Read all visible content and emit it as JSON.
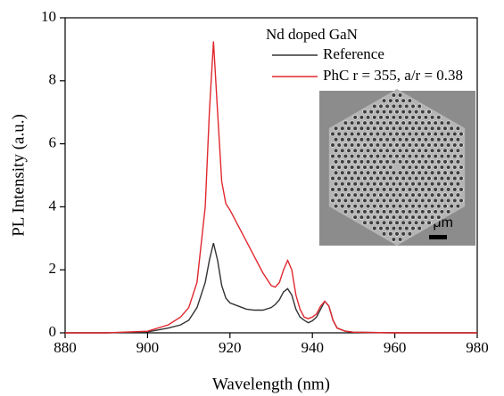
{
  "chart_data": {
    "type": "line",
    "x_label": "Wavelength (nm)",
    "y_label": "PL Intensity (a.u.)",
    "legend_title": "Nd doped GaN",
    "legend_position": "upper right",
    "inset_label": "1 μm",
    "x": [
      880,
      890,
      900,
      905,
      908,
      910,
      912,
      914,
      915,
      916,
      917,
      918,
      919,
      920,
      922,
      924,
      926,
      928,
      930,
      931,
      932,
      933,
      934,
      935,
      936,
      937,
      938,
      939,
      940,
      941,
      942,
      943,
      944,
      945,
      946,
      948,
      950,
      960,
      970,
      980
    ],
    "series": [
      {
        "name": "Reference",
        "color": "#333333",
        "values": [
          0,
          0,
          0.03,
          0.15,
          0.25,
          0.4,
          0.8,
          1.6,
          2.3,
          2.85,
          2.3,
          1.5,
          1.1,
          0.95,
          0.85,
          0.75,
          0.72,
          0.72,
          0.8,
          0.9,
          1.05,
          1.3,
          1.4,
          1.2,
          0.75,
          0.5,
          0.4,
          0.32,
          0.38,
          0.5,
          0.75,
          1.0,
          0.85,
          0.4,
          0.15,
          0.05,
          0.02,
          0,
          0,
          0
        ]
      },
      {
        "name": "PhC r = 355, a/r = 0.38",
        "color": "#e0282e",
        "values": [
          0,
          0,
          0.05,
          0.25,
          0.5,
          0.8,
          1.6,
          4.0,
          7.0,
          9.25,
          7.0,
          4.8,
          4.1,
          3.9,
          3.4,
          2.9,
          2.4,
          1.9,
          1.5,
          1.45,
          1.6,
          2.0,
          2.3,
          2.0,
          1.2,
          0.75,
          0.5,
          0.45,
          0.5,
          0.6,
          0.85,
          1.0,
          0.85,
          0.4,
          0.15,
          0.05,
          0.02,
          0,
          0,
          0
        ]
      }
    ],
    "xlim": [
      880,
      980
    ],
    "xticks": [
      880,
      900,
      920,
      940,
      960,
      980
    ],
    "ylim": [
      0,
      10
    ],
    "yticks": [
      0,
      2,
      4,
      6,
      8,
      10
    ],
    "grid": false
  }
}
